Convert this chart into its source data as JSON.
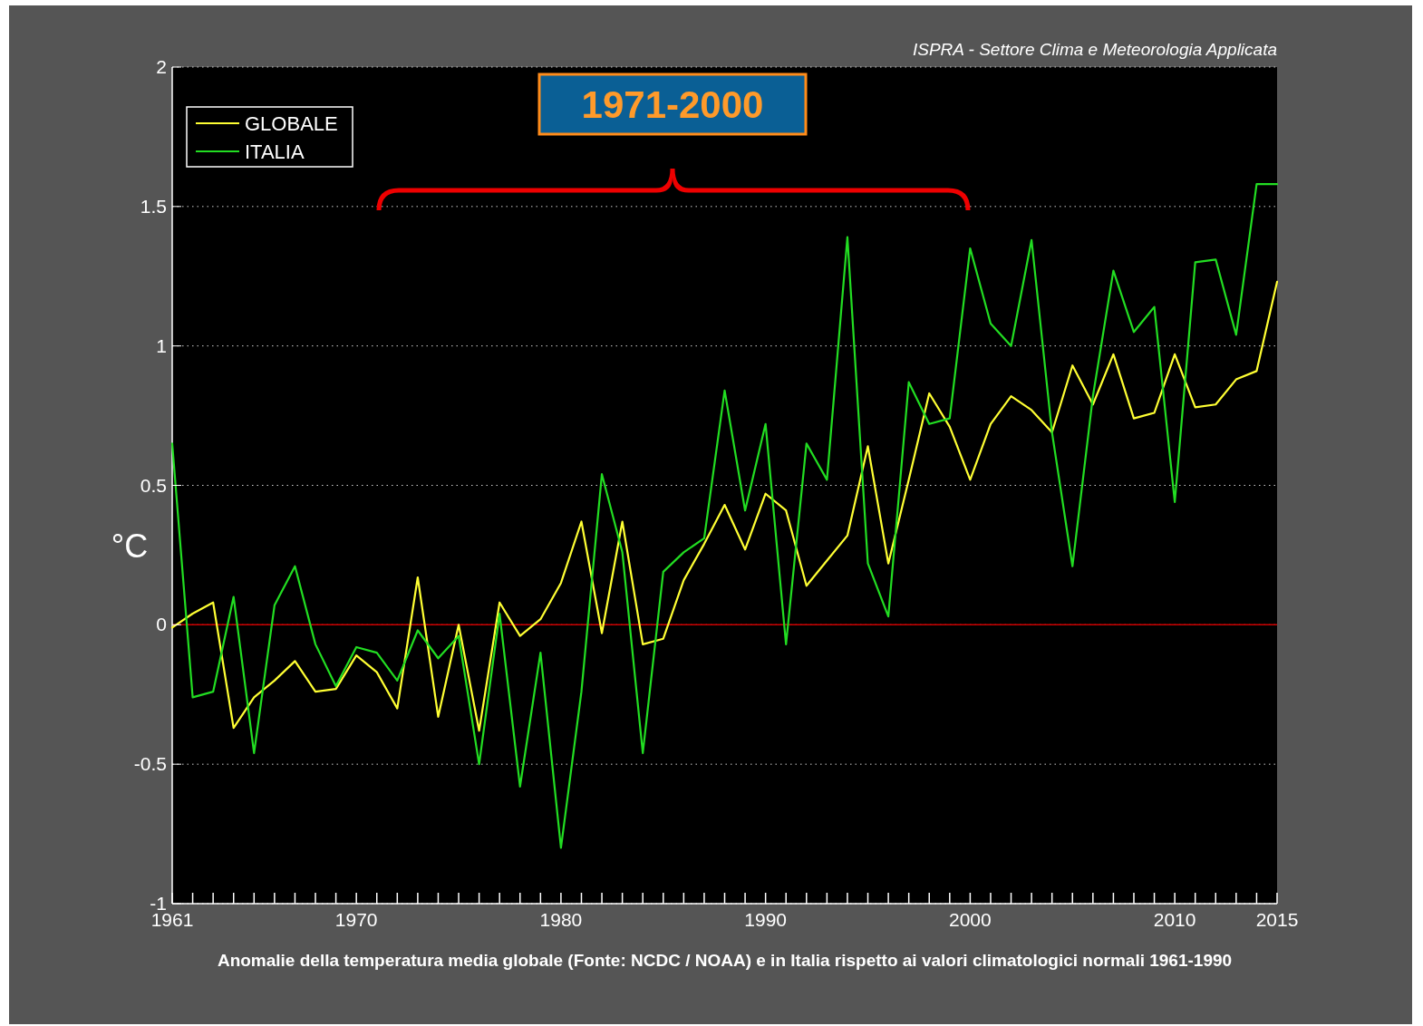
{
  "chart_data": {
    "type": "line",
    "ylabel": "°C",
    "subtitle": "ISPRA - Settore Clima e Meteorologia Applicata",
    "annotations": [
      "1971-2000",
      "Anomalie della temperatura media globale (Fonte: NCDC / NOAA) e in Italia rispetto ai valori climatologici normali 1961-1990"
    ],
    "x": [
      1961,
      1962,
      1963,
      1964,
      1965,
      1966,
      1967,
      1968,
      1969,
      1970,
      1971,
      1972,
      1973,
      1974,
      1975,
      1976,
      1977,
      1978,
      1979,
      1980,
      1981,
      1982,
      1983,
      1984,
      1985,
      1986,
      1987,
      1988,
      1989,
      1990,
      1991,
      1992,
      1993,
      1994,
      1995,
      1996,
      1997,
      1998,
      1999,
      2000,
      2001,
      2002,
      2003,
      2004,
      2005,
      2006,
      2007,
      2008,
      2009,
      2010,
      2011,
      2012,
      2013,
      2014,
      2015
    ],
    "series": [
      {
        "name": "GLOBALE",
        "color": "#ffff33",
        "values": [
          -0.01,
          0.04,
          0.08,
          -0.37,
          -0.26,
          -0.2,
          -0.13,
          -0.24,
          -0.23,
          -0.11,
          -0.17,
          -0.3,
          0.17,
          -0.33,
          0.0,
          -0.38,
          0.08,
          -0.04,
          0.02,
          0.15,
          0.37,
          -0.03,
          0.37,
          -0.07,
          -0.05,
          0.16,
          0.29,
          0.43,
          0.27,
          0.47,
          0.41,
          0.14,
          0.23,
          0.32,
          0.64,
          0.22,
          0.52,
          0.83,
          0.71,
          0.52,
          0.72,
          0.82,
          0.77,
          0.69,
          0.93,
          0.79,
          0.97,
          0.74,
          0.76,
          0.97,
          0.78,
          0.79,
          0.88,
          0.91,
          1.23
        ]
      },
      {
        "name": "ITALIA",
        "color": "#22dd22",
        "values": [
          0.65,
          -0.26,
          -0.24,
          0.1,
          -0.46,
          0.07,
          0.21,
          -0.07,
          -0.22,
          -0.08,
          -0.1,
          -0.2,
          -0.02,
          -0.12,
          -0.04,
          -0.5,
          0.04,
          -0.58,
          -0.1,
          -0.8,
          -0.24,
          0.54,
          0.26,
          -0.46,
          0.19,
          0.26,
          0.31,
          0.84,
          0.41,
          0.72,
          -0.07,
          0.65,
          0.52,
          1.39,
          0.22,
          0.03,
          0.87,
          0.72,
          0.74,
          1.35,
          1.08,
          1.0,
          1.38,
          0.69,
          0.21,
          0.82,
          1.27,
          1.05,
          1.14,
          0.44,
          1.3,
          1.31,
          1.04,
          1.58,
          1.58
        ]
      }
    ],
    "xlim": [
      1961,
      2015
    ],
    "ylim": [
      -1,
      2
    ],
    "xticks": [
      1961,
      {
        "value": 1962,
        "label": null
      },
      {
        "value": 1963,
        "label": null
      },
      {
        "value": 1964,
        "label": null
      },
      {
        "value": 1965,
        "label": null
      },
      {
        "value": 1966,
        "label": null
      },
      {
        "value": 1967,
        "label": null
      },
      {
        "value": 1968,
        "label": null
      },
      {
        "value": 1969,
        "label": null
      },
      1970,
      {
        "value": 1971,
        "label": null
      },
      {
        "value": 1972,
        "label": null
      },
      {
        "value": 1973,
        "label": null
      },
      {
        "value": 1974,
        "label": null
      },
      {
        "value": 1975,
        "label": null
      },
      {
        "value": 1976,
        "label": null
      },
      {
        "value": 1977,
        "label": null
      },
      {
        "value": 1978,
        "label": null
      },
      {
        "value": 1979,
        "label": null
      },
      1980,
      {
        "value": 1981,
        "label": null
      },
      {
        "value": 1982,
        "label": null
      },
      {
        "value": 1983,
        "label": null
      },
      {
        "value": 1984,
        "label": null
      },
      {
        "value": 1985,
        "label": null
      },
      {
        "value": 1986,
        "label": null
      },
      {
        "value": 1987,
        "label": null
      },
      {
        "value": 1988,
        "label": null
      },
      {
        "value": 1989,
        "label": null
      },
      1990,
      {
        "value": 1991,
        "label": null
      },
      {
        "value": 1992,
        "label": null
      },
      {
        "value": 1993,
        "label": null
      },
      {
        "value": 1994,
        "label": null
      },
      {
        "value": 1995,
        "label": null
      },
      {
        "value": 1996,
        "label": null
      },
      {
        "value": 1997,
        "label": null
      },
      {
        "value": 1998,
        "label": null
      },
      {
        "value": 1999,
        "label": null
      },
      2000,
      {
        "value": 2001,
        "label": null
      },
      {
        "value": 2002,
        "label": null
      },
      {
        "value": 2003,
        "label": null
      },
      {
        "value": 2004,
        "label": null
      },
      {
        "value": 2005,
        "label": null
      },
      {
        "value": 2006,
        "label": null
      },
      {
        "value": 2007,
        "label": null
      },
      {
        "value": 2008,
        "label": null
      },
      {
        "value": 2009,
        "label": null
      },
      2010,
      {
        "value": 2011,
        "label": null
      },
      {
        "value": 2012,
        "label": null
      },
      {
        "value": 2013,
        "label": null
      },
      {
        "value": 2014,
        "label": null
      },
      2015
    ],
    "yticks": [
      -1,
      -0.5,
      0,
      0.5,
      1,
      1.5,
      2
    ],
    "ref_lines": [
      {
        "axis": "y",
        "value": 0,
        "color": "#cc0000"
      }
    ],
    "grid": "y",
    "legend": "top left",
    "marker": "none",
    "line_style": "solid"
  }
}
